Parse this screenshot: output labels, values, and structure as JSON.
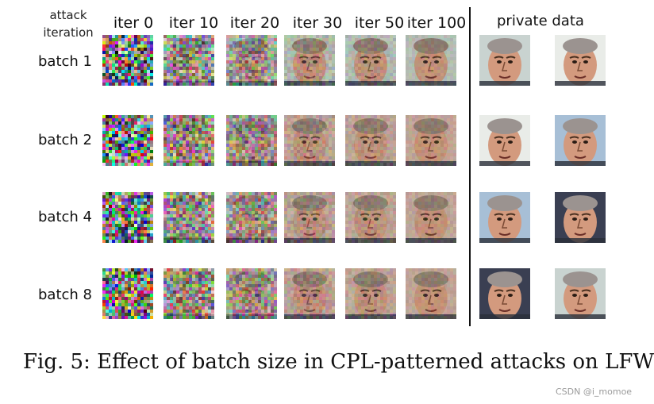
{
  "corner_label": {
    "line1": "attack",
    "line2": "iteration"
  },
  "columns": [
    "iter 0",
    "iter 10",
    "iter 20",
    "iter 30",
    "iter 50",
    "iter 100"
  ],
  "private_header": "private data",
  "rows": [
    "batch 1",
    "batch 2",
    "batch 4",
    "batch 8"
  ],
  "caption": "Fig. 5: Effect of batch size in CPL-patterned attacks on LFW",
  "watermark": "CSDN @i_momoe"
}
